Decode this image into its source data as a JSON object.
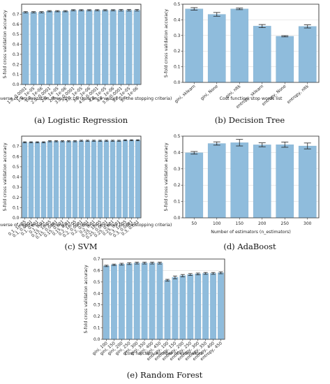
{
  "bar_color": "#8fbcdc",
  "bar_edge": "#7aa9cb",
  "error_color": "#222222",
  "chart_data": [
    {
      "id": "a",
      "type": "bar",
      "caption": "(a) Logistic Regression",
      "xlabel": "C (inverse of regularization strength), tol (tolerance values for the stopping criteria)",
      "ylabel": "5-fold cross validation accuracy",
      "ylim": [
        0,
        0.8
      ],
      "yticks": [
        "0.0",
        "0.1",
        "0.2",
        "0.3",
        "0.4",
        "0.5",
        "0.6",
        "0.7"
      ],
      "grid": true,
      "categories": [
        "1.0, 0.0001",
        "1.0, 1e-05",
        "1.0, 1e-06",
        "2.0, 0.0001",
        "2.0, 1e-05",
        "2.0, 1e-06",
        "3.0, 0.0001",
        "3.0, 1e-05",
        "3.0, 1e-06",
        "4.0, 0.0001",
        "4.0, 1e-05",
        "4.0, 1e-06",
        "5.0, 0.0001",
        "5.0, 1e-05",
        "5.0, 1e-06"
      ],
      "values": [
        0.72,
        0.72,
        0.72,
        0.73,
        0.73,
        0.73,
        0.74,
        0.74,
        0.74,
        0.74,
        0.74,
        0.74,
        0.74,
        0.74,
        0.74
      ],
      "errors": [
        0.006,
        0.006,
        0.006,
        0.006,
        0.006,
        0.006,
        0.006,
        0.006,
        0.006,
        0.006,
        0.006,
        0.006,
        0.008,
        0.008,
        0.008
      ]
    },
    {
      "id": "b",
      "type": "bar",
      "caption": "(b) Decision Tree",
      "xlabel": "Cost function, stop words list",
      "ylabel": "5-fold cross validation accuracy",
      "ylim": [
        0,
        0.5
      ],
      "yticks": [
        "0.0",
        "0.1",
        "0.2",
        "0.3",
        "0.4",
        "0.5"
      ],
      "grid": true,
      "categories": [
        "gini, sklearn",
        "gini, None",
        "gini, nltk",
        "entropy, sklearn",
        "entropy, None",
        "entropy, nltk"
      ],
      "values": [
        0.47,
        0.435,
        0.47,
        0.36,
        0.295,
        0.358
      ],
      "errors": [
        0.008,
        0.012,
        0.005,
        0.01,
        0.004,
        0.01
      ]
    },
    {
      "id": "c",
      "type": "bar",
      "caption": "(c) SVM",
      "xlabel": "C (inverse of regularization strength), tol (tolerance values for the stopping criteria)",
      "ylabel": "5-fold cross validation accuracy",
      "ylim": [
        0,
        0.8
      ],
      "yticks": [
        "0.0",
        "0.1",
        "0.2",
        "0.3",
        "0.4",
        "0.5",
        "0.6",
        "0.7"
      ],
      "grid": true,
      "categories": [
        "0.1, 1e-05",
        "0.1, 0.0001",
        "0.1, 0.001",
        "0.1, 0.01",
        "0.15, 1e-05",
        "0.15, 0.0001",
        "0.15, 0.001",
        "0.15, 0.01",
        "0.2, 1e-05",
        "0.2, 0.0001",
        "0.2, 0.001",
        "0.2, 0.01",
        "0.25, 1e-05",
        "0.25, 0.0001",
        "0.25, 0.001",
        "0.25, 0.01",
        "0.3, 1e-05",
        "0.3, 0.0001",
        "0.3, 0.001"
      ],
      "values": [
        0.74,
        0.74,
        0.74,
        0.74,
        0.75,
        0.75,
        0.75,
        0.75,
        0.75,
        0.755,
        0.755,
        0.755,
        0.755,
        0.755,
        0.755,
        0.755,
        0.76,
        0.76,
        0.76
      ],
      "errors": [
        0.005,
        0.005,
        0.005,
        0.005,
        0.005,
        0.005,
        0.005,
        0.005,
        0.005,
        0.005,
        0.005,
        0.005,
        0.005,
        0.005,
        0.005,
        0.005,
        0.005,
        0.005,
        0.005
      ]
    },
    {
      "id": "d",
      "type": "bar",
      "caption": "(d) AdaBoost",
      "xlabel": "Number of estimators (n_estimators)",
      "ylabel": "5-fold cross validation accuracy",
      "ylim": [
        0,
        0.5
      ],
      "yticks": [
        "0.0",
        "0.1",
        "0.2",
        "0.3",
        "0.4",
        "0.5"
      ],
      "grid": true,
      "categories": [
        "50",
        "100",
        "150",
        "200",
        "250",
        "300"
      ],
      "values": [
        0.398,
        0.455,
        0.46,
        0.447,
        0.448,
        0.44
      ],
      "errors": [
        0.008,
        0.01,
        0.02,
        0.012,
        0.016,
        0.018
      ]
    },
    {
      "id": "e",
      "type": "bar",
      "caption": "(e) Random Forest",
      "xlabel": "Cost function, number of estimators",
      "ylabel": "5-fold cross validation accuracy",
      "ylim": [
        0,
        0.7
      ],
      "yticks": [
        "0.0",
        "0.1",
        "0.2",
        "0.3",
        "0.4",
        "0.5",
        "0.6",
        "0.7"
      ],
      "grid": true,
      "categories": [
        "gini, 100",
        "gini, 150",
        "gini, 200",
        "gini, 250",
        "gini, 300",
        "gini, 350",
        "gini, 400",
        "gini, 450",
        "entropy, 100",
        "entropy, 150",
        "entropy, 200",
        "entropy, 250",
        "entropy, 300",
        "entropy, 350",
        "entropy, 400",
        "entropy, 450"
      ],
      "values": [
        0.64,
        0.65,
        0.655,
        0.66,
        0.665,
        0.665,
        0.665,
        0.665,
        0.515,
        0.54,
        0.555,
        0.565,
        0.57,
        0.575,
        0.575,
        0.58
      ],
      "errors": [
        0.006,
        0.006,
        0.008,
        0.008,
        0.008,
        0.008,
        0.008,
        0.008,
        0.008,
        0.012,
        0.01,
        0.008,
        0.008,
        0.008,
        0.008,
        0.008
      ]
    }
  ]
}
